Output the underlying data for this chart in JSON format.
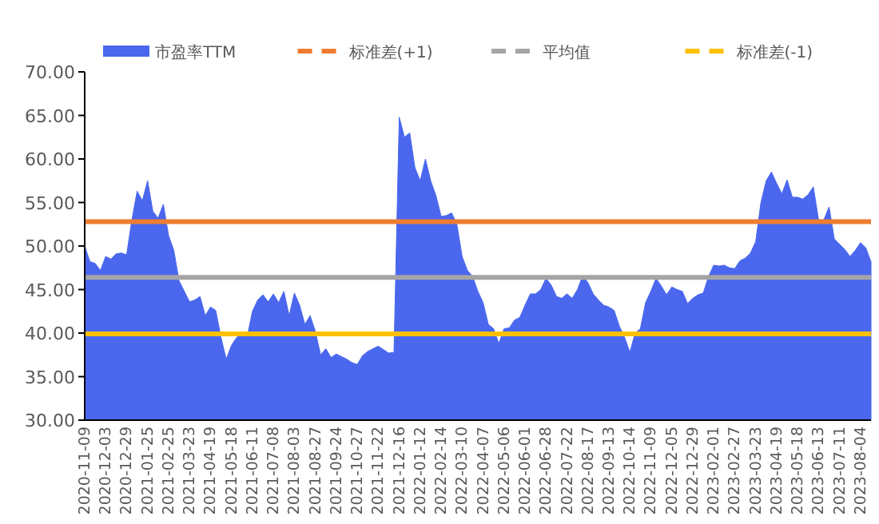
{
  "chart_data": {
    "type": "area",
    "categories": [
      "2020-11-09",
      null,
      null,
      null,
      "2020-12-03",
      null,
      null,
      null,
      "2020-12-29",
      null,
      null,
      null,
      "2021-01-25",
      null,
      null,
      null,
      "2021-02-25",
      null,
      null,
      null,
      "2021-03-23",
      null,
      null,
      null,
      "2021-04-19",
      null,
      null,
      null,
      "2021-05-18",
      null,
      null,
      null,
      "2021-06-11",
      null,
      null,
      null,
      "2021-07-08",
      null,
      null,
      null,
      "2021-08-03",
      null,
      null,
      null,
      "2021-08-27",
      null,
      null,
      null,
      "2021-09-24",
      null,
      null,
      null,
      "2021-10-27",
      null,
      null,
      null,
      "2021-11-22",
      null,
      null,
      null,
      "2021-12-16",
      null,
      null,
      null,
      "2022-01-12",
      null,
      null,
      null,
      "2022-02-14",
      null,
      null,
      null,
      "2022-03-10",
      null,
      null,
      null,
      "2022-04-07",
      null,
      null,
      null,
      "2022-05-06",
      null,
      null,
      null,
      "2022-06-01",
      null,
      null,
      null,
      "2022-06-28",
      null,
      null,
      null,
      "2022-07-22",
      null,
      null,
      null,
      "2022-08-17",
      null,
      null,
      null,
      "2022-09-13",
      null,
      null,
      null,
      "2022-10-14",
      null,
      null,
      null,
      "2022-11-09",
      null,
      null,
      null,
      "2022-12-05",
      null,
      null,
      null,
      "2022-12-29",
      null,
      null,
      null,
      "2023-02-01",
      null,
      null,
      null,
      "2023-02-27",
      null,
      null,
      null,
      "2023-03-23",
      null,
      null,
      null,
      "2023-04-19",
      null,
      null,
      null,
      "2023-05-18",
      null,
      null,
      null,
      "2023-06-13",
      null,
      null,
      null,
      "2023-07-11",
      null,
      null,
      null,
      "2023-08-04",
      null,
      null
    ],
    "series": [
      {
        "name": "市盈率TTM",
        "color": "#4a67ee",
        "values": [
          50,
          48.2,
          48,
          47.2,
          48.8,
          48.5,
          49.1,
          49.2,
          49,
          53,
          56.3,
          55.2,
          57.5,
          54,
          53.2,
          54.8,
          51.2,
          49.5,
          46,
          44.8,
          43.6,
          43.8,
          44.2,
          42,
          43,
          42.6,
          39.5,
          37,
          38.6,
          39.5,
          40.1,
          39.6,
          42.5,
          43.8,
          44.4,
          43.6,
          44.5,
          43.5,
          44.8,
          42,
          44.6,
          43.2,
          41,
          42,
          40.2,
          37.5,
          38.2,
          37.2,
          37.6,
          37.3,
          37,
          36.6,
          36.4,
          37.4,
          37.9,
          38.2,
          38.5,
          38.1,
          37.7,
          37.8,
          64.8,
          62.5,
          63,
          59,
          57.5,
          60,
          57.5,
          55.8,
          53.4,
          53.5,
          53.8,
          52.5,
          48.8,
          47.2,
          46.5,
          44.8,
          43.5,
          41,
          40.5,
          38.8,
          40.5,
          40.6,
          41.5,
          41.8,
          43.2,
          44.5,
          44.5,
          45,
          46.3,
          45.5,
          44.2,
          44,
          44.5,
          44,
          45,
          46.6,
          45.8,
          44.5,
          43.8,
          43.2,
          43,
          42.6,
          40.8,
          39.5,
          37.8,
          40,
          40.5,
          43.5,
          44.8,
          46.3,
          45.4,
          44.4,
          45.3,
          45,
          44.8,
          43.4,
          44,
          44.4,
          44.6,
          46.5,
          47.8,
          47.7,
          47.8,
          47.5,
          47.4,
          48.3,
          48.6,
          49.2,
          50.5,
          55,
          57.5,
          58.5,
          57.2,
          56,
          57.6,
          55.6,
          55.6,
          55.4,
          55.9,
          56.8,
          53,
          53,
          54.5,
          50.8,
          50.2,
          49.6,
          48.8,
          49.5,
          50.4,
          49.8,
          48.2
        ]
      }
    ],
    "ref_lines": [
      {
        "axis": "y",
        "value": 52.8,
        "label": "标准差(+1)",
        "color": "#ed7d31"
      },
      {
        "axis": "y",
        "value": 46.4,
        "label": "平均值",
        "color": "#a5a5a5"
      },
      {
        "axis": "y",
        "value": 39.9,
        "label": "标准差(-1)",
        "color": "#ffc000"
      }
    ],
    "ylim": [
      30,
      70
    ],
    "yticks": [
      {
        "value": 30,
        "label": "30.00"
      },
      {
        "value": 35,
        "label": "35.00"
      },
      {
        "value": 40,
        "label": "40.00"
      },
      {
        "value": 45,
        "label": "45.00"
      },
      {
        "value": 50,
        "label": "50.00"
      },
      {
        "value": 55,
        "label": "55.00"
      },
      {
        "value": 60,
        "label": "60.00"
      },
      {
        "value": 65,
        "label": "65.00"
      },
      {
        "value": 70,
        "label": "70.00"
      }
    ],
    "legend": "top"
  }
}
